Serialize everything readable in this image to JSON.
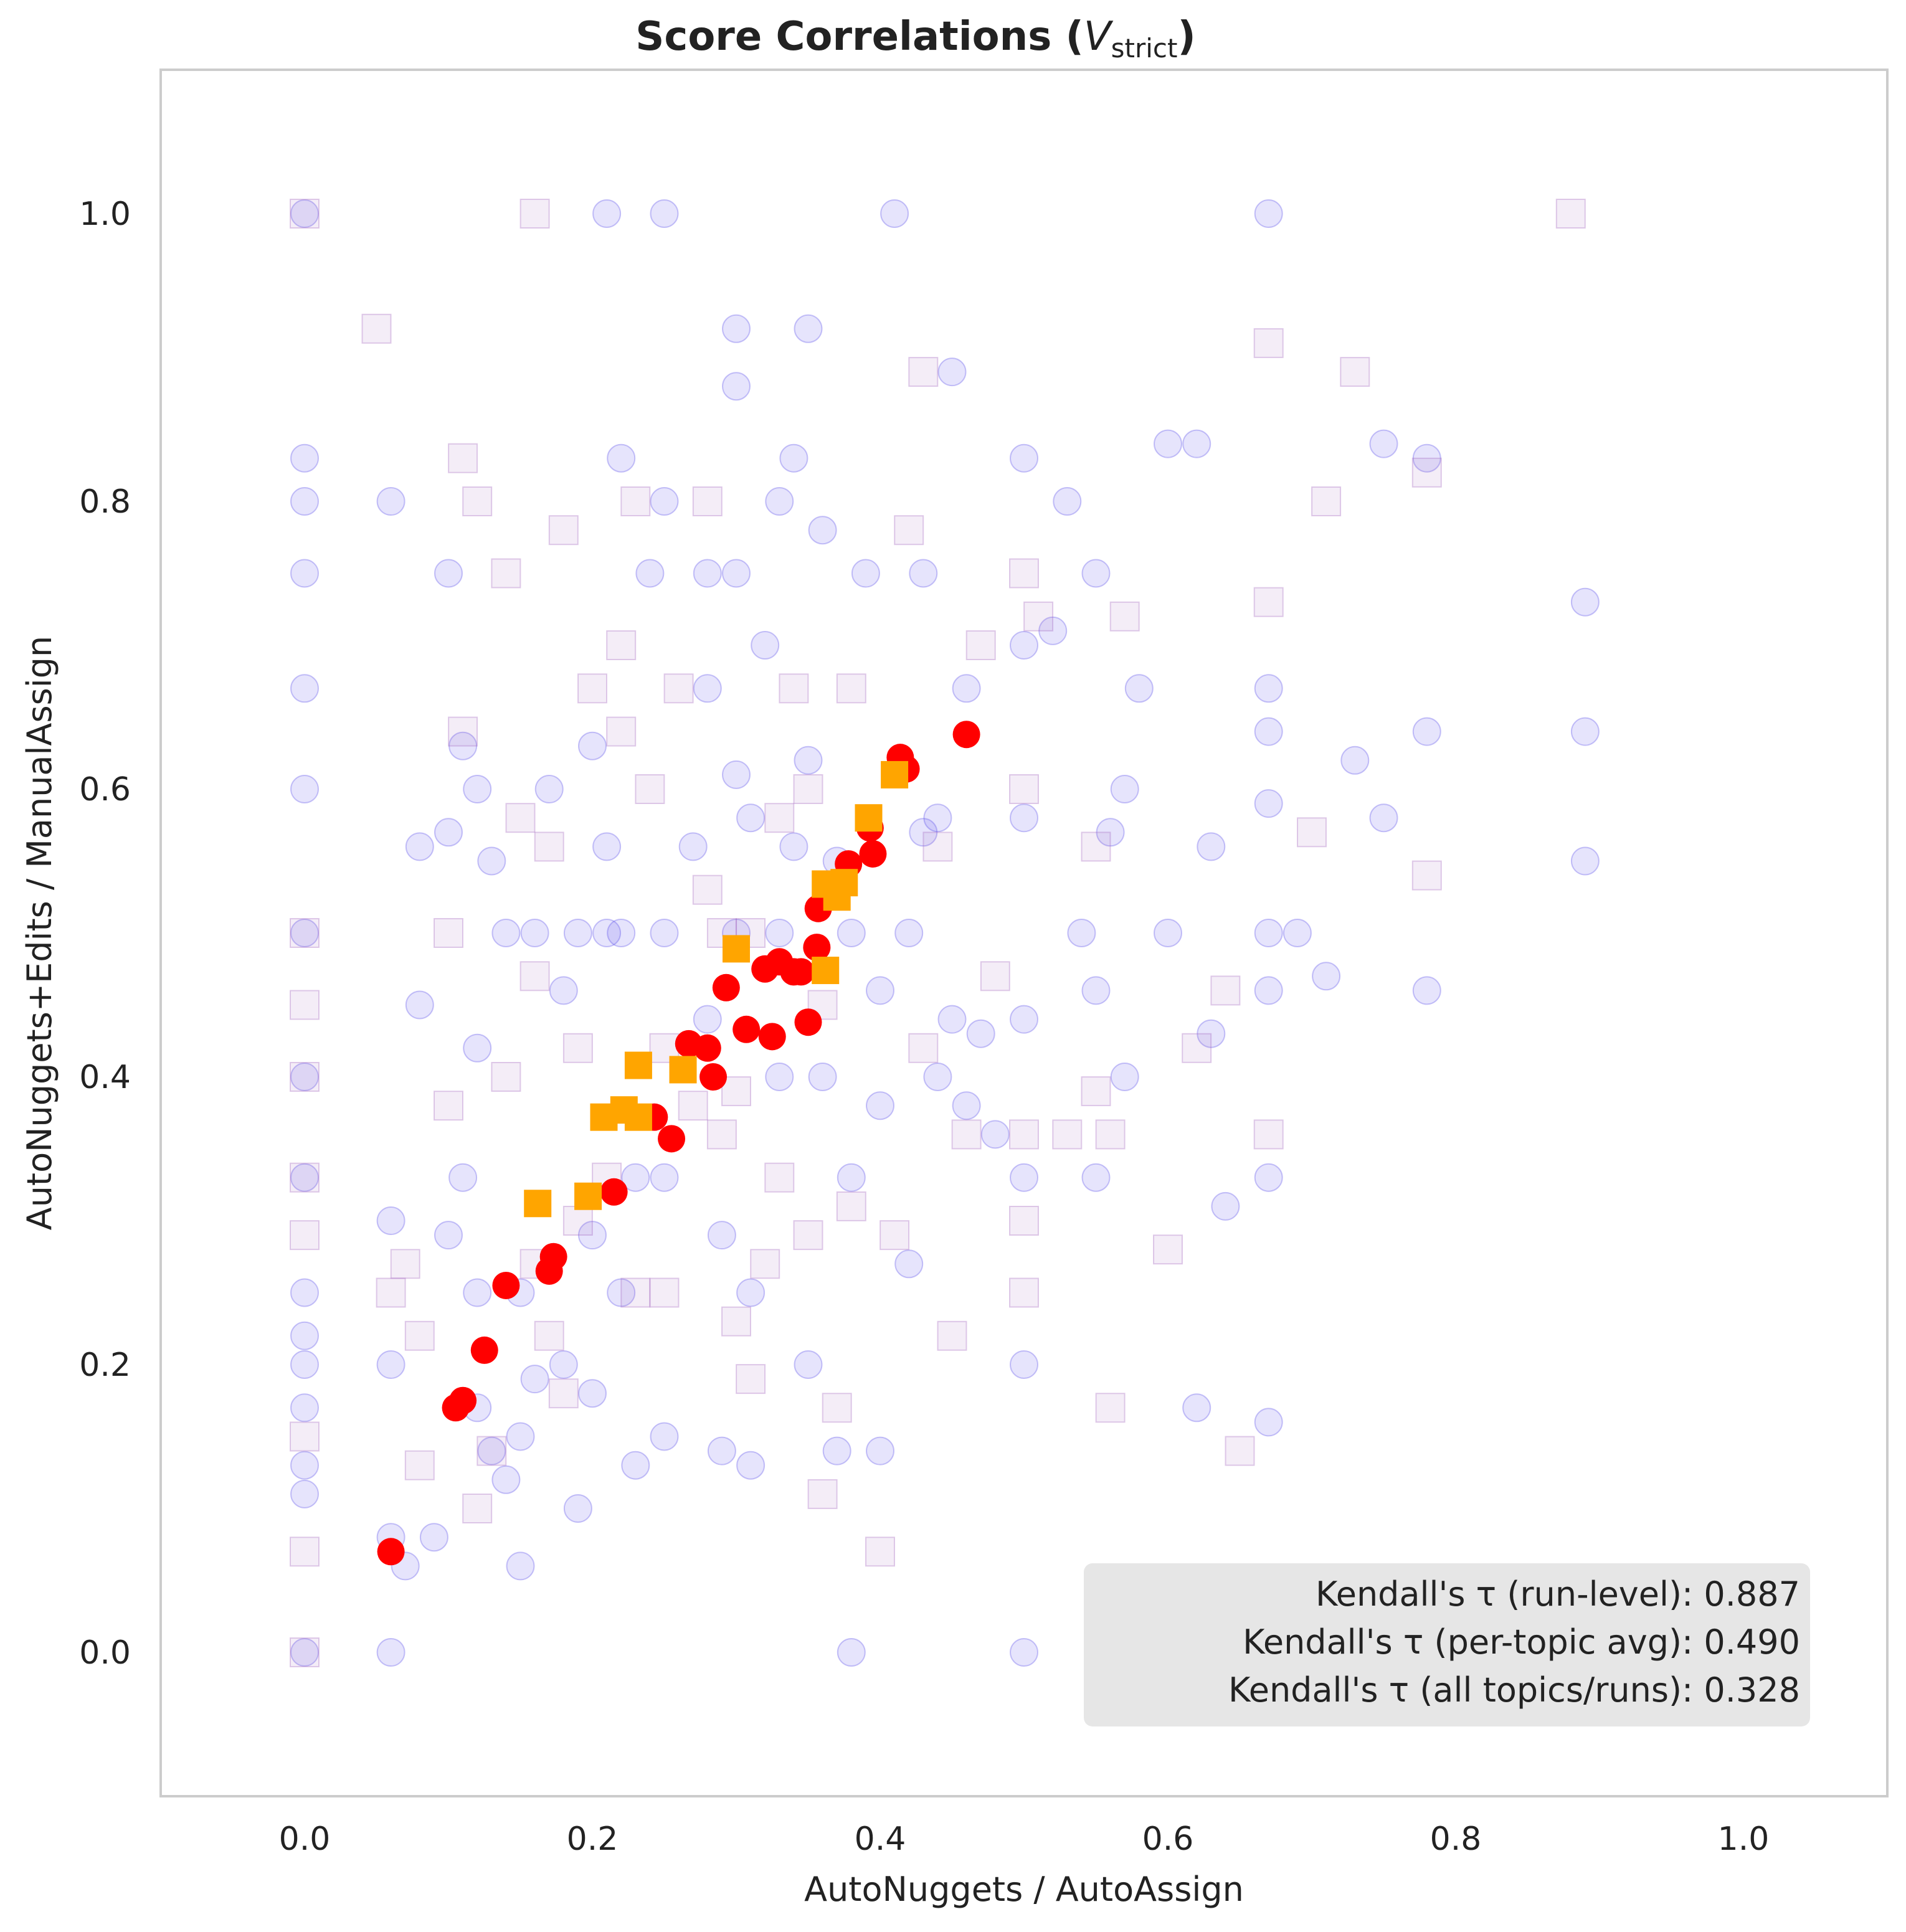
{
  "chart_data": {
    "type": "scatter",
    "title": "Score Correlations (",
    "title_math_var": "V",
    "title_math_sub": "strict",
    "title_close": ")",
    "xlabel": "AutoNuggets / AutoAssign",
    "ylabel": "AutoNuggets+Edits / ManualAssign",
    "xlim": [
      -0.1,
      1.1
    ],
    "ylim": [
      -0.1,
      1.1
    ],
    "x_ticks": [
      "0.0",
      "0.2",
      "0.4",
      "0.6",
      "0.8",
      "1.0"
    ],
    "y_ticks": [
      "0.0",
      "0.2",
      "0.4",
      "0.6",
      "0.8",
      "1.0"
    ],
    "grid": false,
    "stats": [
      "Kendall's τ (run-level): 0.887",
      "Kendall's τ (per-topic avg): 0.490",
      "Kendall's τ (all topics/runs): 0.328"
    ],
    "colors": {
      "topic_circles": "#4b3fe8",
      "topic_squares": "#9a5ab8",
      "run_circles": "#ff0000",
      "run_squares": "#ffa500",
      "frame": "#cccccc",
      "stats_box": "#e6e6e6"
    },
    "series": [
      {
        "marker": "circle",
        "color": "#4b3fe8",
        "x": [
          0,
          0,
          0,
          0,
          0,
          0,
          0,
          0,
          0,
          0,
          0,
          0,
          0,
          0,
          0,
          0,
          0.06,
          0.06,
          0.06,
          0.06,
          0.06,
          0.07,
          0.08,
          0.08,
          0.09,
          0.1,
          0.1,
          0.1,
          0.11,
          0.11,
          0.12,
          0.12,
          0.12,
          0.12,
          0.13,
          0.13,
          0.14,
          0.14,
          0.15,
          0.15,
          0.15,
          0.16,
          0.16,
          0.17,
          0.18,
          0.18,
          0.19,
          0.19,
          0.2,
          0.2,
          0.2,
          0.21,
          0.21,
          0.21,
          0.22,
          0.22,
          0.22,
          0.23,
          0.23,
          0.24,
          0.25,
          0.25,
          0.25,
          0.25,
          0.25,
          0.27,
          0.28,
          0.28,
          0.28,
          0.29,
          0.29,
          0.3,
          0.3,
          0.3,
          0.3,
          0.3,
          0.31,
          0.31,
          0.31,
          0.32,
          0.33,
          0.33,
          0.33,
          0.34,
          0.34,
          0.35,
          0.35,
          0.35,
          0.36,
          0.36,
          0.37,
          0.37,
          0.38,
          0.38,
          0.38,
          0.39,
          0.4,
          0.4,
          0.4,
          0.41,
          0.42,
          0.42,
          0.43,
          0.43,
          0.44,
          0.44,
          0.45,
          0.45,
          0.46,
          0.46,
          0.47,
          0.48,
          0.5,
          0.5,
          0.5,
          0.5,
          0.5,
          0.5,
          0.5,
          0.52,
          0.53,
          0.54,
          0.55,
          0.55,
          0.55,
          0.56,
          0.57,
          0.57,
          0.58,
          0.6,
          0.6,
          0.62,
          0.62,
          0.63,
          0.63,
          0.64,
          0.67,
          0.67,
          0.67,
          0.67,
          0.67,
          0.67,
          0.67,
          0.67,
          0.69,
          0.71,
          0.73,
          0.75,
          0.75,
          0.78,
          0.78,
          0.78,
          0.89,
          0.89,
          0.89
        ],
        "y": [
          0,
          0.11,
          0.13,
          0.17,
          0.2,
          0.22,
          0.25,
          0.33,
          0.4,
          0.5,
          0.6,
          0.67,
          0.75,
          0.8,
          0.83,
          1.0,
          0,
          0.08,
          0.2,
          0.3,
          0.8,
          0.06,
          0.45,
          0.56,
          0.08,
          0.29,
          0.57,
          0.75,
          0.33,
          0.63,
          0.17,
          0.25,
          0.42,
          0.6,
          0.14,
          0.55,
          0.12,
          0.5,
          0.06,
          0.15,
          0.25,
          0.19,
          0.5,
          0.6,
          0.2,
          0.46,
          0.1,
          0.5,
          0.18,
          0.29,
          0.63,
          0.5,
          0.56,
          1.0,
          0.25,
          0.5,
          0.83,
          0.13,
          0.33,
          0.75,
          0.15,
          0.33,
          0.5,
          0.8,
          1.0,
          0.56,
          0.44,
          0.67,
          0.75,
          0.14,
          0.29,
          0.5,
          0.61,
          0.75,
          0.88,
          0.92,
          0.13,
          0.25,
          0.58,
          0.7,
          0.4,
          0.5,
          0.8,
          0.56,
          0.83,
          0.2,
          0.62,
          0.92,
          0.4,
          0.78,
          0.14,
          0.55,
          0.0,
          0.33,
          0.5,
          0.75,
          0.14,
          0.38,
          0.46,
          1.0,
          0.27,
          0.5,
          0.57,
          0.75,
          0.4,
          0.58,
          0.44,
          0.89,
          0.38,
          0.67,
          0.43,
          0.36,
          0.0,
          0.2,
          0.33,
          0.44,
          0.58,
          0.7,
          0.83,
          0.71,
          0.8,
          0.5,
          0.33,
          0.46,
          0.75,
          0.57,
          0.4,
          0.6,
          0.67,
          0.5,
          0.84,
          0.17,
          0.84,
          0.43,
          0.56,
          0.31,
          0.16,
          0.33,
          0.46,
          0.5,
          0.59,
          0.64,
          0.67,
          1.0,
          0.5,
          0.47,
          0.62,
          0.58,
          0.84,
          0.46,
          0.64,
          0.83,
          0.55,
          0.64,
          0.73
        ]
      },
      {
        "marker": "square",
        "color": "#9a5ab8",
        "x": [
          0,
          0,
          0,
          0,
          0,
          0,
          0,
          0,
          0,
          0.05,
          0.06,
          0.07,
          0.08,
          0.08,
          0.1,
          0.1,
          0.11,
          0.11,
          0.12,
          0.12,
          0.13,
          0.14,
          0.14,
          0.15,
          0.16,
          0.16,
          0.16,
          0.17,
          0.17,
          0.18,
          0.18,
          0.19,
          0.19,
          0.2,
          0.21,
          0.22,
          0.22,
          0.23,
          0.23,
          0.24,
          0.25,
          0.25,
          0.26,
          0.27,
          0.28,
          0.28,
          0.29,
          0.29,
          0.3,
          0.3,
          0.31,
          0.31,
          0.32,
          0.33,
          0.33,
          0.34,
          0.35,
          0.35,
          0.36,
          0.36,
          0.37,
          0.38,
          0.38,
          0.4,
          0.41,
          0.42,
          0.43,
          0.43,
          0.44,
          0.45,
          0.46,
          0.47,
          0.48,
          0.5,
          0.5,
          0.5,
          0.5,
          0.5,
          0.51,
          0.53,
          0.55,
          0.55,
          0.56,
          0.56,
          0.57,
          0.6,
          0.62,
          0.64,
          0.65,
          0.67,
          0.67,
          0.67,
          0.7,
          0.71,
          0.73,
          0.78,
          0.78,
          0.88
        ],
        "y": [
          0,
          0.07,
          0.15,
          0.29,
          0.33,
          0.4,
          0.45,
          0.5,
          1.0,
          0.92,
          0.25,
          0.27,
          0.13,
          0.22,
          0.38,
          0.5,
          0.64,
          0.83,
          0.1,
          0.8,
          0.14,
          0.4,
          0.75,
          0.58,
          0.27,
          0.47,
          1.0,
          0.22,
          0.56,
          0.18,
          0.78,
          0.3,
          0.42,
          0.67,
          0.33,
          0.64,
          0.7,
          0.25,
          0.8,
          0.6,
          0.25,
          0.42,
          0.67,
          0.38,
          0.53,
          0.8,
          0.36,
          0.5,
          0.23,
          0.39,
          0.19,
          0.5,
          0.27,
          0.33,
          0.58,
          0.67,
          0.29,
          0.6,
          0.11,
          0.45,
          0.17,
          0.67,
          0.31,
          0.07,
          0.29,
          0.78,
          0.42,
          0.89,
          0.56,
          0.22,
          0.36,
          0.7,
          0.47,
          0.25,
          0.3,
          0.36,
          0.6,
          0.75,
          0.72,
          0.36,
          0.39,
          0.56,
          0.17,
          0.36,
          0.72,
          0.28,
          0.42,
          0.46,
          0.14,
          0.36,
          0.73,
          0.91,
          0.57,
          0.8,
          0.89,
          0.54,
          0.82,
          1.0
        ]
      },
      {
        "marker": "circle",
        "color": "#ff0000",
        "x": [
          0.06,
          0.105,
          0.11,
          0.125,
          0.14,
          0.17,
          0.173,
          0.215,
          0.243,
          0.255,
          0.267,
          0.28,
          0.284,
          0.293,
          0.307,
          0.32,
          0.325,
          0.33,
          0.34,
          0.345,
          0.35,
          0.356,
          0.357,
          0.378,
          0.393,
          0.395,
          0.414,
          0.418,
          0.46
        ],
        "y": [
          0.07,
          0.17,
          0.175,
          0.21,
          0.255,
          0.265,
          0.275,
          0.32,
          0.372,
          0.357,
          0.423,
          0.42,
          0.4,
          0.462,
          0.433,
          0.475,
          0.428,
          0.48,
          0.473,
          0.473,
          0.438,
          0.49,
          0.517,
          0.548,
          0.573,
          0.555,
          0.622,
          0.614,
          0.638
        ]
      },
      {
        "marker": "square",
        "color": "#ffa500",
        "x": [
          0.162,
          0.197,
          0.208,
          0.222,
          0.232,
          0.232,
          0.263,
          0.3,
          0.362,
          0.362,
          0.37,
          0.375,
          0.392,
          0.41
        ],
        "y": [
          0.312,
          0.317,
          0.372,
          0.377,
          0.372,
          0.408,
          0.405,
          0.489,
          0.474,
          0.534,
          0.525,
          0.535,
          0.58,
          0.61
        ]
      }
    ]
  }
}
